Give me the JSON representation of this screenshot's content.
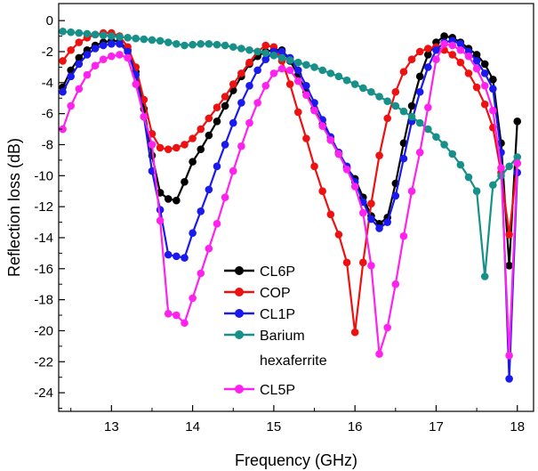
{
  "chart_data": {
    "type": "line",
    "title": "",
    "xlabel": "Frequency (GHz)",
    "ylabel": "Reflection loss (dB)",
    "xlim": [
      12.35,
      18.2
    ],
    "ylim": [
      -25.2,
      1.1
    ],
    "x_ticks": [
      13,
      14,
      15,
      16,
      17,
      18
    ],
    "y_ticks": [
      0,
      -2,
      -4,
      -6,
      -8,
      -10,
      -12,
      -14,
      -16,
      -18,
      -20,
      -22,
      -24
    ],
    "grid": false,
    "legend_position": "bottom-center",
    "series": [
      {
        "name": "CL6P",
        "color": "#000000",
        "points": [
          [
            12.4,
            -4.3
          ],
          [
            12.5,
            -3.2
          ],
          [
            12.6,
            -2.4
          ],
          [
            12.7,
            -1.9
          ],
          [
            12.8,
            -1.6
          ],
          [
            12.9,
            -1.4
          ],
          [
            13.0,
            -1.3
          ],
          [
            13.1,
            -1.35
          ],
          [
            13.2,
            -1.9
          ],
          [
            13.3,
            -3.3
          ],
          [
            13.4,
            -5.7
          ],
          [
            13.5,
            -8.7
          ],
          [
            13.6,
            -11.1
          ],
          [
            13.7,
            -11.5
          ],
          [
            13.8,
            -11.6
          ],
          [
            13.9,
            -10.4
          ],
          [
            14.0,
            -9.1
          ],
          [
            14.1,
            -8.3
          ],
          [
            14.2,
            -7.4
          ],
          [
            14.3,
            -6.5
          ],
          [
            14.4,
            -5.5
          ],
          [
            14.5,
            -4.5
          ],
          [
            14.6,
            -3.6
          ],
          [
            14.7,
            -2.8
          ],
          [
            14.8,
            -2.3
          ],
          [
            14.9,
            -2.0
          ],
          [
            15.0,
            -1.9
          ],
          [
            15.1,
            -1.9
          ],
          [
            15.2,
            -2.6
          ],
          [
            15.3,
            -3.5
          ],
          [
            15.4,
            -4.6
          ],
          [
            15.5,
            -5.7
          ],
          [
            15.6,
            -6.7
          ],
          [
            15.7,
            -7.7
          ],
          [
            15.8,
            -8.6
          ],
          [
            15.9,
            -9.5
          ],
          [
            16.0,
            -10.2
          ],
          [
            16.1,
            -11.4
          ],
          [
            16.2,
            -12.6
          ],
          [
            16.3,
            -13.1
          ],
          [
            16.4,
            -12.7
          ],
          [
            16.5,
            -10.5
          ],
          [
            16.6,
            -7.9
          ],
          [
            16.7,
            -5.5
          ],
          [
            16.8,
            -3.6
          ],
          [
            16.9,
            -2.2
          ],
          [
            17.0,
            -1.4
          ],
          [
            17.1,
            -1.0
          ],
          [
            17.2,
            -1.1
          ],
          [
            17.3,
            -1.4
          ],
          [
            17.4,
            -1.8
          ],
          [
            17.5,
            -2.2
          ],
          [
            17.6,
            -2.8
          ],
          [
            17.7,
            -3.8
          ],
          [
            17.8,
            -7.9
          ],
          [
            17.9,
            -15.8
          ],
          [
            18.0,
            -6.5
          ]
        ]
      },
      {
        "name": "COP",
        "color": "#ee1111",
        "points": [
          [
            12.4,
            -2.6
          ],
          [
            12.5,
            -1.9
          ],
          [
            12.6,
            -1.4
          ],
          [
            12.7,
            -1.1
          ],
          [
            12.8,
            -0.9
          ],
          [
            12.9,
            -0.8
          ],
          [
            13.0,
            -0.8
          ],
          [
            13.1,
            -1.0
          ],
          [
            13.2,
            -1.7
          ],
          [
            13.3,
            -3.0
          ],
          [
            13.4,
            -5.1
          ],
          [
            13.5,
            -7.3
          ],
          [
            13.6,
            -8.2
          ],
          [
            13.7,
            -8.3
          ],
          [
            13.8,
            -8.2
          ],
          [
            13.9,
            -8.0
          ],
          [
            14.0,
            -7.6
          ],
          [
            14.1,
            -7.0
          ],
          [
            14.2,
            -6.3
          ],
          [
            14.3,
            -5.6
          ],
          [
            14.4,
            -4.9
          ],
          [
            14.5,
            -4.1
          ],
          [
            14.6,
            -3.4
          ],
          [
            14.7,
            -2.7
          ],
          [
            14.8,
            -2.0
          ],
          [
            14.9,
            -1.6
          ],
          [
            15.0,
            -1.7
          ],
          [
            15.1,
            -2.6
          ],
          [
            15.2,
            -4.1
          ],
          [
            15.3,
            -5.9
          ],
          [
            15.4,
            -7.6
          ],
          [
            15.5,
            -9.4
          ],
          [
            15.6,
            -11.0
          ],
          [
            15.7,
            -12.5
          ],
          [
            15.8,
            -13.8
          ],
          [
            15.9,
            -15.6
          ],
          [
            16.0,
            -20.1
          ],
          [
            16.1,
            -15.6
          ],
          [
            16.2,
            -11.8
          ],
          [
            16.3,
            -8.7
          ],
          [
            16.4,
            -6.3
          ],
          [
            16.5,
            -4.6
          ],
          [
            16.6,
            -3.3
          ],
          [
            16.7,
            -2.5
          ],
          [
            16.8,
            -2.0
          ],
          [
            16.9,
            -1.8
          ],
          [
            17.0,
            -1.7
          ],
          [
            17.1,
            -1.9
          ],
          [
            17.2,
            -2.2
          ],
          [
            17.3,
            -2.7
          ],
          [
            17.4,
            -3.4
          ],
          [
            17.5,
            -4.3
          ],
          [
            17.6,
            -5.4
          ],
          [
            17.7,
            -6.9
          ],
          [
            17.8,
            -9.8
          ],
          [
            17.9,
            -13.8
          ],
          [
            18.0,
            -9.2
          ]
        ]
      },
      {
        "name": "CL1P",
        "color": "#1a1aee",
        "points": [
          [
            12.4,
            -4.6
          ],
          [
            12.5,
            -3.6
          ],
          [
            12.6,
            -2.8
          ],
          [
            12.7,
            -2.2
          ],
          [
            12.8,
            -1.8
          ],
          [
            12.9,
            -1.6
          ],
          [
            13.0,
            -1.5
          ],
          [
            13.1,
            -1.5
          ],
          [
            13.2,
            -2.0
          ],
          [
            13.3,
            -3.5
          ],
          [
            13.4,
            -6.2
          ],
          [
            13.5,
            -9.7
          ],
          [
            13.6,
            -12.2
          ],
          [
            13.7,
            -15.1
          ],
          [
            13.8,
            -15.2
          ],
          [
            13.9,
            -15.3
          ],
          [
            14.0,
            -13.7
          ],
          [
            14.1,
            -12.3
          ],
          [
            14.2,
            -10.9
          ],
          [
            14.3,
            -9.4
          ],
          [
            14.4,
            -8.0
          ],
          [
            14.5,
            -6.6
          ],
          [
            14.6,
            -5.3
          ],
          [
            14.7,
            -4.2
          ],
          [
            14.8,
            -3.2
          ],
          [
            14.9,
            -2.5
          ],
          [
            15.0,
            -2.0
          ],
          [
            15.1,
            -2.0
          ],
          [
            15.2,
            -2.4
          ],
          [
            15.3,
            -3.2
          ],
          [
            15.4,
            -4.2
          ],
          [
            15.5,
            -5.3
          ],
          [
            15.6,
            -6.4
          ],
          [
            15.7,
            -7.5
          ],
          [
            15.8,
            -8.5
          ],
          [
            15.9,
            -9.4
          ],
          [
            16.0,
            -10.4
          ],
          [
            16.1,
            -11.7
          ],
          [
            16.2,
            -12.8
          ],
          [
            16.3,
            -13.4
          ],
          [
            16.4,
            -13.0
          ],
          [
            16.5,
            -11.3
          ],
          [
            16.6,
            -8.9
          ],
          [
            16.7,
            -6.5
          ],
          [
            16.8,
            -4.6
          ],
          [
            16.9,
            -3.0
          ],
          [
            17.0,
            -1.9
          ],
          [
            17.1,
            -1.4
          ],
          [
            17.2,
            -1.3
          ],
          [
            17.3,
            -1.5
          ],
          [
            17.4,
            -2.0
          ],
          [
            17.5,
            -2.6
          ],
          [
            17.6,
            -3.4
          ],
          [
            17.7,
            -4.4
          ],
          [
            17.8,
            -8.5
          ],
          [
            17.9,
            -23.1
          ],
          [
            18.0,
            -9.8
          ]
        ]
      },
      {
        "name": "Barium hexaferrite",
        "color": "#17908a",
        "points": [
          [
            12.4,
            -0.7
          ],
          [
            12.5,
            -0.75
          ],
          [
            12.6,
            -0.8
          ],
          [
            12.7,
            -0.85
          ],
          [
            12.8,
            -0.9
          ],
          [
            12.9,
            -0.95
          ],
          [
            13.0,
            -1.0
          ],
          [
            13.1,
            -1.05
          ],
          [
            13.2,
            -1.1
          ],
          [
            13.3,
            -1.15
          ],
          [
            13.4,
            -1.2
          ],
          [
            13.5,
            -1.25
          ],
          [
            13.6,
            -1.3
          ],
          [
            13.7,
            -1.4
          ],
          [
            13.8,
            -1.5
          ],
          [
            13.9,
            -1.6
          ],
          [
            14.0,
            -1.55
          ],
          [
            14.1,
            -1.5
          ],
          [
            14.2,
            -1.5
          ],
          [
            14.3,
            -1.55
          ],
          [
            14.4,
            -1.6
          ],
          [
            14.5,
            -1.7
          ],
          [
            14.6,
            -1.8
          ],
          [
            14.7,
            -1.9
          ],
          [
            14.8,
            -2.0
          ],
          [
            14.9,
            -2.1
          ],
          [
            15.0,
            -2.25
          ],
          [
            15.1,
            -2.4
          ],
          [
            15.2,
            -2.55
          ],
          [
            15.3,
            -2.7
          ],
          [
            15.4,
            -2.85
          ],
          [
            15.5,
            -3.0
          ],
          [
            15.6,
            -3.2
          ],
          [
            15.7,
            -3.4
          ],
          [
            15.8,
            -3.6
          ],
          [
            15.9,
            -3.85
          ],
          [
            16.0,
            -4.1
          ],
          [
            16.1,
            -4.35
          ],
          [
            16.2,
            -4.6
          ],
          [
            16.3,
            -4.9
          ],
          [
            16.4,
            -5.2
          ],
          [
            16.5,
            -5.5
          ],
          [
            16.6,
            -5.85
          ],
          [
            16.7,
            -6.2
          ],
          [
            16.8,
            -6.6
          ],
          [
            16.9,
            -7.0
          ],
          [
            17.0,
            -7.5
          ],
          [
            17.1,
            -8.0
          ],
          [
            17.2,
            -8.6
          ],
          [
            17.3,
            -9.3
          ],
          [
            17.4,
            -10.1
          ],
          [
            17.5,
            -11.0
          ],
          [
            17.6,
            -16.5
          ],
          [
            17.7,
            -10.6
          ],
          [
            17.8,
            -10.0
          ],
          [
            17.9,
            -9.4
          ],
          [
            18.0,
            -8.8
          ]
        ]
      },
      {
        "name": "CL5P",
        "color": "#ff22ee",
        "points": [
          [
            12.4,
            -7.0
          ],
          [
            12.5,
            -5.5
          ],
          [
            12.6,
            -4.4
          ],
          [
            12.7,
            -3.5
          ],
          [
            12.8,
            -2.9
          ],
          [
            12.9,
            -2.5
          ],
          [
            13.0,
            -2.3
          ],
          [
            13.1,
            -2.2
          ],
          [
            13.2,
            -2.4
          ],
          [
            13.3,
            -4.1
          ],
          [
            13.4,
            -6.2
          ],
          [
            13.5,
            -8.0
          ],
          [
            13.6,
            -12.9
          ],
          [
            13.7,
            -18.9
          ],
          [
            13.8,
            -19.0
          ],
          [
            13.9,
            -19.5
          ],
          [
            14.0,
            -17.9
          ],
          [
            14.1,
            -16.3
          ],
          [
            14.2,
            -14.7
          ],
          [
            14.3,
            -13.1
          ],
          [
            14.4,
            -11.4
          ],
          [
            14.5,
            -9.7
          ],
          [
            14.6,
            -8.1
          ],
          [
            14.7,
            -6.6
          ],
          [
            14.8,
            -5.3
          ],
          [
            14.9,
            -4.2
          ],
          [
            15.0,
            -3.4
          ],
          [
            15.1,
            -3.1
          ],
          [
            15.2,
            -3.2
          ],
          [
            15.3,
            -3.9
          ],
          [
            15.4,
            -4.8
          ],
          [
            15.5,
            -5.8
          ],
          [
            15.6,
            -6.8
          ],
          [
            15.7,
            -7.7
          ],
          [
            15.8,
            -8.6
          ],
          [
            15.9,
            -9.6
          ],
          [
            16.0,
            -10.7
          ],
          [
            16.1,
            -12.4
          ],
          [
            16.2,
            -15.8
          ],
          [
            16.3,
            -21.5
          ],
          [
            16.4,
            -19.8
          ],
          [
            16.5,
            -17.0
          ],
          [
            16.6,
            -13.9
          ],
          [
            16.7,
            -11.0
          ],
          [
            16.8,
            -8.5
          ],
          [
            16.9,
            -5.6
          ],
          [
            17.0,
            -2.5
          ],
          [
            17.1,
            -1.5
          ],
          [
            17.2,
            -1.6
          ],
          [
            17.3,
            -1.9
          ],
          [
            17.4,
            -2.3
          ],
          [
            17.5,
            -3.1
          ],
          [
            17.6,
            -4.2
          ],
          [
            17.7,
            -5.8
          ],
          [
            17.8,
            -9.5
          ],
          [
            17.9,
            -21.6
          ],
          [
            18.0,
            -9.2
          ]
        ]
      }
    ]
  }
}
